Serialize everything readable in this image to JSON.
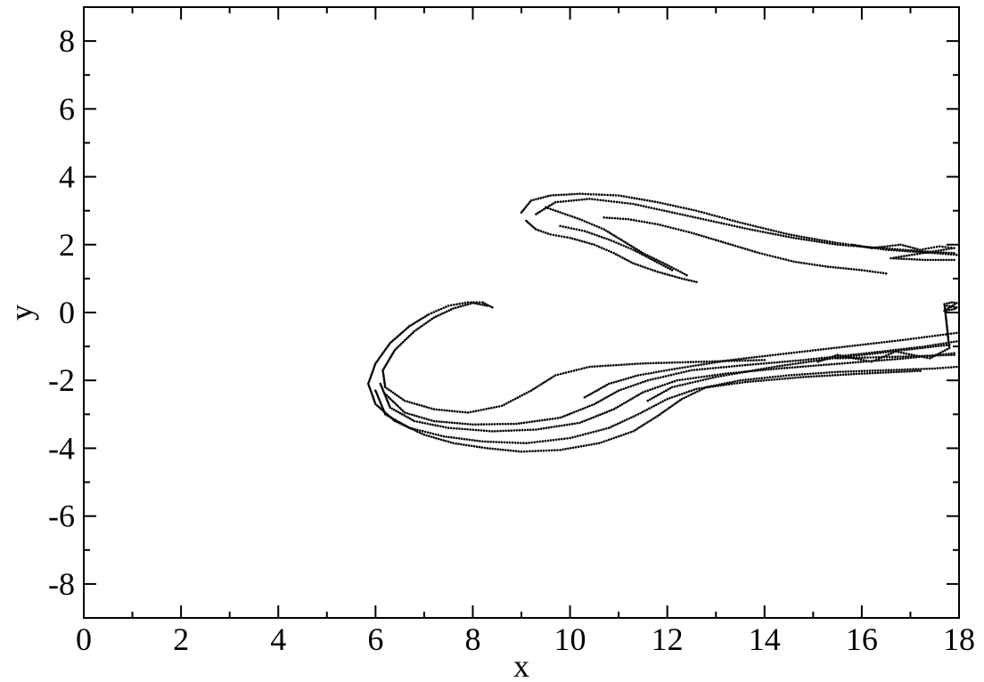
{
  "chart_data": {
    "type": "scatter",
    "title": "",
    "xlabel": "x",
    "ylabel": "y",
    "xlim": [
      0,
      18
    ],
    "ylim": [
      -9,
      9
    ],
    "x_ticks": [
      0,
      2,
      4,
      6,
      8,
      10,
      12,
      14,
      16,
      18
    ],
    "y_ticks": [
      -8,
      -6,
      -4,
      -2,
      0,
      2,
      4,
      6,
      8
    ],
    "grid": false,
    "legend": "none",
    "marker_color": "#000000",
    "series": [
      {
        "points": [
          [
            8.4,
            0.15
          ],
          [
            8.2,
            0.3
          ],
          [
            7.9,
            0.3
          ],
          [
            7.5,
            0.2
          ],
          [
            7.1,
            -0.05
          ],
          [
            6.7,
            -0.4
          ],
          [
            6.3,
            -0.9
          ],
          [
            6.0,
            -1.5
          ],
          [
            5.85,
            -2.1
          ],
          [
            6.0,
            -2.7
          ],
          [
            6.4,
            -3.2
          ],
          [
            7.0,
            -3.6
          ],
          [
            7.6,
            -3.85
          ],
          [
            8.3,
            -4.0
          ],
          [
            9.0,
            -4.1
          ],
          [
            9.8,
            -4.05
          ],
          [
            10.6,
            -3.85
          ],
          [
            11.3,
            -3.5
          ],
          [
            11.8,
            -3.05
          ],
          [
            12.3,
            -2.55
          ],
          [
            12.8,
            -2.2
          ],
          [
            13.5,
            -2.0
          ],
          [
            14.5,
            -1.85
          ],
          [
            15.5,
            -1.75
          ],
          [
            16.5,
            -1.7
          ],
          [
            17.5,
            -1.65
          ],
          [
            17.95,
            -1.6
          ],
          [
            8.3,
            0.2
          ],
          [
            8.0,
            0.28
          ],
          [
            7.6,
            0.12
          ],
          [
            7.2,
            -0.15
          ],
          [
            6.8,
            -0.55
          ],
          [
            6.4,
            -1.1
          ],
          [
            6.15,
            -1.7
          ],
          [
            6.2,
            -2.2
          ],
          [
            6.6,
            -2.6
          ],
          [
            7.2,
            -2.85
          ],
          [
            7.9,
            -2.95
          ],
          [
            8.6,
            -2.75
          ],
          [
            9.2,
            -2.3
          ],
          [
            9.7,
            -1.85
          ],
          [
            10.4,
            -1.6
          ],
          [
            11.5,
            -1.5
          ],
          [
            12.7,
            -1.45
          ],
          [
            14.0,
            -1.4
          ],
          [
            15.5,
            -1.35
          ],
          [
            16.8,
            -1.3
          ],
          [
            17.9,
            -1.25
          ],
          [
            6.1,
            -2.1
          ],
          [
            6.3,
            -2.8
          ],
          [
            6.8,
            -3.2
          ],
          [
            7.5,
            -3.4
          ],
          [
            8.4,
            -3.5
          ],
          [
            9.3,
            -3.45
          ],
          [
            10.2,
            -3.25
          ],
          [
            10.9,
            -2.85
          ],
          [
            11.5,
            -2.35
          ],
          [
            12.2,
            -2.0
          ],
          [
            13.2,
            -1.8
          ],
          [
            14.3,
            -1.65
          ],
          [
            15.6,
            -1.5
          ],
          [
            16.9,
            -1.35
          ],
          [
            17.9,
            -1.2
          ],
          [
            6.0,
            -2.3
          ],
          [
            6.2,
            -3.0
          ],
          [
            6.7,
            -3.4
          ],
          [
            7.4,
            -3.65
          ],
          [
            8.2,
            -3.8
          ],
          [
            9.1,
            -3.85
          ],
          [
            10.0,
            -3.7
          ],
          [
            10.8,
            -3.4
          ],
          [
            11.4,
            -3.0
          ],
          [
            12.0,
            -2.55
          ],
          [
            12.6,
            -2.25
          ],
          [
            13.6,
            -2.05
          ],
          [
            14.8,
            -1.9
          ],
          [
            16.0,
            -1.8
          ],
          [
            17.2,
            -1.72
          ],
          [
            6.2,
            -2.4
          ],
          [
            6.6,
            -2.95
          ],
          [
            7.2,
            -3.2
          ],
          [
            8.0,
            -3.3
          ],
          [
            8.9,
            -3.28
          ],
          [
            9.8,
            -3.1
          ],
          [
            10.5,
            -2.7
          ],
          [
            11.0,
            -2.3
          ],
          [
            11.6,
            -2.0
          ],
          [
            12.5,
            -1.7
          ],
          [
            13.6,
            -1.55
          ],
          [
            14.8,
            -1.4
          ],
          [
            16.1,
            -1.2
          ],
          [
            17.3,
            -1.0
          ],
          [
            17.95,
            -0.85
          ],
          [
            10.3,
            -2.5
          ],
          [
            10.8,
            -2.1
          ],
          [
            11.4,
            -1.85
          ],
          [
            12.2,
            -1.65
          ],
          [
            13.3,
            -1.4
          ],
          [
            14.5,
            -1.2
          ],
          [
            15.7,
            -1.0
          ],
          [
            16.9,
            -0.8
          ],
          [
            17.95,
            -0.6
          ],
          [
            11.6,
            -2.6
          ],
          [
            12.1,
            -2.2
          ],
          [
            13.0,
            -1.9
          ],
          [
            14.2,
            -1.6
          ],
          [
            15.4,
            -1.35
          ],
          [
            16.6,
            -1.15
          ],
          [
            17.8,
            -0.95
          ],
          [
            15.1,
            -1.45
          ],
          [
            15.5,
            -1.25
          ],
          [
            16.2,
            -1.45
          ],
          [
            16.7,
            -1.15
          ],
          [
            17.4,
            -1.35
          ],
          [
            17.8,
            -1.05
          ],
          [
            17.7,
            0.25
          ],
          [
            17.85,
            0.3
          ],
          [
            17.95,
            0.28
          ],
          [
            17.7,
            0.05
          ],
          [
            17.9,
            0.1
          ],
          [
            17.95,
            0.15
          ],
          [
            17.75,
            0.2
          ],
          [
            9.0,
            2.95
          ],
          [
            9.2,
            3.3
          ],
          [
            9.6,
            3.45
          ],
          [
            10.2,
            3.5
          ],
          [
            11.0,
            3.45
          ],
          [
            11.8,
            3.25
          ],
          [
            12.6,
            3.0
          ],
          [
            13.5,
            2.65
          ],
          [
            14.5,
            2.3
          ],
          [
            15.5,
            2.05
          ],
          [
            16.5,
            1.85
          ],
          [
            17.5,
            1.75
          ],
          [
            17.95,
            1.7
          ],
          [
            9.1,
            2.7
          ],
          [
            9.3,
            2.45
          ],
          [
            9.6,
            2.3
          ],
          [
            10.0,
            2.2
          ],
          [
            10.5,
            2.0
          ],
          [
            10.9,
            1.75
          ],
          [
            11.3,
            1.45
          ],
          [
            11.8,
            1.2
          ],
          [
            12.3,
            1.0
          ],
          [
            12.6,
            0.9
          ],
          [
            9.5,
            3.1
          ],
          [
            9.8,
            2.95
          ],
          [
            10.2,
            2.75
          ],
          [
            10.7,
            2.45
          ],
          [
            11.1,
            2.1
          ],
          [
            11.5,
            1.75
          ],
          [
            12.0,
            1.4
          ],
          [
            12.4,
            1.1
          ],
          [
            9.3,
            2.9
          ],
          [
            9.7,
            3.25
          ],
          [
            10.4,
            3.35
          ],
          [
            11.3,
            3.2
          ],
          [
            12.1,
            2.95
          ],
          [
            12.9,
            2.7
          ],
          [
            13.7,
            2.45
          ],
          [
            14.6,
            2.2
          ],
          [
            15.5,
            2.0
          ],
          [
            16.4,
            1.9
          ],
          [
            17.3,
            1.8
          ],
          [
            17.9,
            1.75
          ],
          [
            10.7,
            2.8
          ],
          [
            11.2,
            2.75
          ],
          [
            11.8,
            2.6
          ],
          [
            12.5,
            2.35
          ],
          [
            13.2,
            2.05
          ],
          [
            13.9,
            1.75
          ],
          [
            14.6,
            1.5
          ],
          [
            15.3,
            1.35
          ],
          [
            16.0,
            1.25
          ],
          [
            16.5,
            1.15
          ],
          [
            9.8,
            2.55
          ],
          [
            10.3,
            2.4
          ],
          [
            10.8,
            2.15
          ],
          [
            11.3,
            1.85
          ],
          [
            11.7,
            1.55
          ],
          [
            12.1,
            1.25
          ],
          [
            15.8,
            2.0
          ],
          [
            16.2,
            1.9
          ],
          [
            16.8,
            2.0
          ],
          [
            17.2,
            1.85
          ],
          [
            17.6,
            1.95
          ],
          [
            17.9,
            1.9
          ],
          [
            16.6,
            1.6
          ],
          [
            17.3,
            1.55
          ],
          [
            17.9,
            1.55
          ]
        ]
      }
    ]
  }
}
